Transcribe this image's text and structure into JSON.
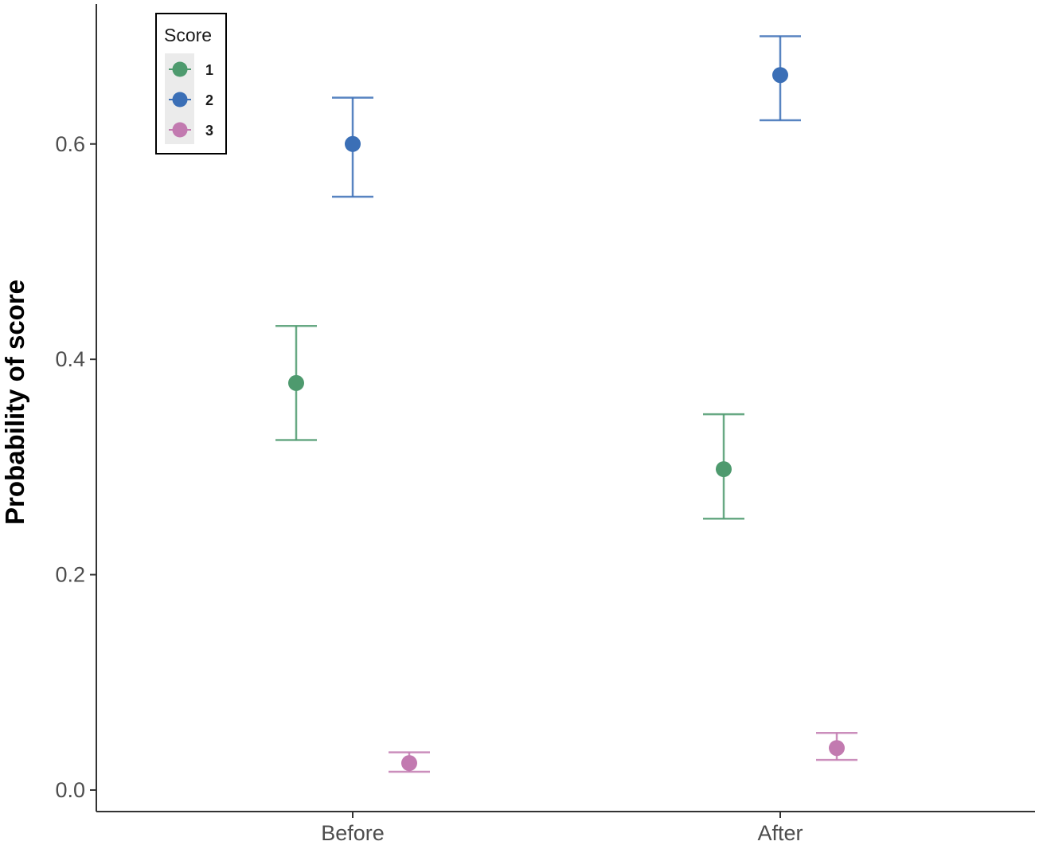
{
  "chart_data": {
    "type": "scatter",
    "ylabel": "Probability of score",
    "xlabel": "",
    "categories": [
      "Before",
      "After"
    ],
    "ylim": [
      -0.02,
      0.73
    ],
    "yticks": [
      "0.0",
      "0.2",
      "0.4",
      "0.6"
    ],
    "legend": {
      "title": "Score",
      "position": "top-left"
    },
    "series": [
      {
        "name": "1",
        "color": "#4e9a6e",
        "values": [
          0.378,
          0.298
        ],
        "lower": [
          0.325,
          0.252
        ],
        "upper": [
          0.431,
          0.349
        ]
      },
      {
        "name": "2",
        "color": "#3b6fb6",
        "values": [
          0.6,
          0.664
        ],
        "lower": [
          0.551,
          0.622
        ],
        "upper": [
          0.643,
          0.7
        ]
      },
      {
        "name": "3",
        "color": "#c27ab0",
        "values": [
          0.025,
          0.039
        ],
        "lower": [
          0.017,
          0.028
        ],
        "upper": [
          0.035,
          0.053
        ]
      }
    ]
  }
}
